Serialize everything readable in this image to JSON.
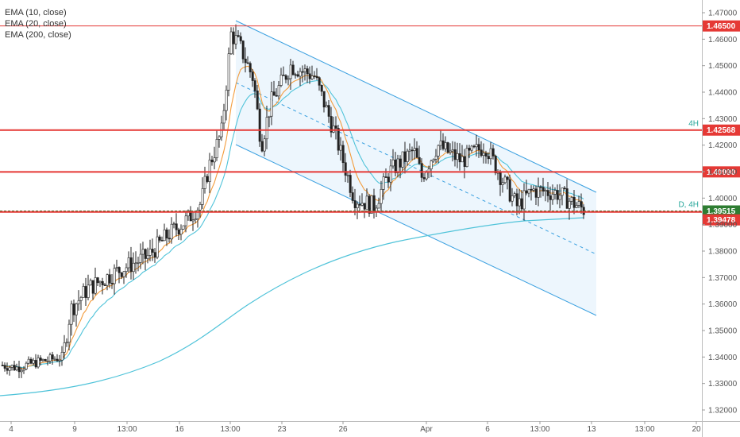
{
  "chart_data": {
    "type": "candlestick",
    "indicators": [
      "EMA (10, close)",
      "EMA (20, close)",
      "EMA (200, close)"
    ],
    "y_ticks": [
      "1.47000",
      "1.46000",
      "1.45000",
      "1.44000",
      "1.43000",
      "1.42000",
      "1.41000",
      "1.40000",
      "1.39000",
      "1.38000",
      "1.37000",
      "1.36000",
      "1.35000",
      "1.34000",
      "1.33000",
      "1.32000"
    ],
    "y_tick_values": [
      1.47,
      1.46,
      1.45,
      1.44,
      1.43,
      1.42,
      1.41,
      1.4,
      1.39,
      1.38,
      1.37,
      1.36,
      1.35,
      1.34,
      1.33,
      1.32
    ],
    "ylim": [
      1.3175,
      1.4735
    ],
    "x_ticks": [
      "4",
      "9",
      "13:00",
      "16",
      "13:00",
      "23",
      "26",
      "Apr",
      "6",
      "13:00",
      "13",
      "13:00",
      "20"
    ],
    "levels": [
      {
        "value": 1.465,
        "label": "1.46500",
        "color": "#e53935",
        "heavy": false,
        "note": ""
      },
      {
        "value": 1.42568,
        "label": "1.42568",
        "color": "#e53935",
        "heavy": true,
        "note": "4H"
      },
      {
        "value": 1.4099,
        "label": "1.40990",
        "color": "#e53935",
        "heavy": true,
        "note": ""
      },
      {
        "value": 1.39515,
        "label": "1.39515",
        "color": "#2e7d32",
        "heavy": false,
        "note": "D, 4H"
      },
      {
        "value": 1.39478,
        "label": "1.39478",
        "color": "#e53935",
        "heavy": true,
        "note": ""
      }
    ],
    "colors": {
      "up": "#ffffff",
      "down": "#222222",
      "ema10": "#f39c3c",
      "ema20": "#4fc3d9",
      "ema200": "#4fc3d9",
      "channel": "#3aa0e0",
      "channel_fill": "#e8f4fc",
      "level": "#e53935"
    }
  }
}
